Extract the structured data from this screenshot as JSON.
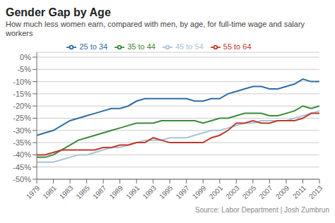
{
  "chart_data": {
    "type": "line",
    "title": "Gender Gap by Age",
    "subtitle": "How much less women earn, compared with men, by age, for full-time wage and salary workers",
    "annotations": [
      "Source: Labor Department  |  Josh Zumbrun"
    ],
    "x": [
      1979,
      1980,
      1981,
      1982,
      1983,
      1984,
      1985,
      1986,
      1987,
      1988,
      1989,
      1990,
      1991,
      1992,
      1993,
      1994,
      1995,
      1996,
      1997,
      1998,
      1999,
      2000,
      2001,
      2002,
      2003,
      2004,
      2005,
      2006,
      2007,
      2008,
      2009,
      2010,
      2011,
      2012,
      2013
    ],
    "series": [
      {
        "name": "25 to 34",
        "color": "#2e6da4",
        "values": [
          -32,
          -31,
          -30,
          -28,
          -26,
          -25,
          -24,
          -23,
          -22,
          -21,
          -21,
          -20,
          -18,
          -17,
          -17,
          -17,
          -17,
          -17,
          -17,
          -18,
          -18,
          -17,
          -17,
          -15,
          -14,
          -13,
          -12,
          -12,
          -13,
          -13,
          -12,
          -11,
          -9,
          -10,
          -10
        ]
      },
      {
        "name": "35 to 44",
        "color": "#3a8a3a",
        "values": [
          -41,
          -41,
          -40,
          -38,
          -36,
          -34,
          -33,
          -32,
          -31,
          -30,
          -29,
          -28,
          -27,
          -27,
          -27,
          -26,
          -26,
          -26,
          -26,
          -26,
          -27,
          -26,
          -25,
          -25,
          -24,
          -23,
          -23,
          -23,
          -24,
          -24,
          -23,
          -22,
          -20,
          -21,
          -20
        ]
      },
      {
        "name": "45 to 54",
        "color": "#a8c4d8",
        "values": [
          -43,
          -43,
          -43,
          -42,
          -41,
          -40,
          -40,
          -39,
          -38,
          -37,
          -37,
          -36,
          -35,
          -34,
          -34,
          -34,
          -33,
          -33,
          -33,
          -32,
          -31,
          -30,
          -30,
          -29,
          -28,
          -27,
          -27,
          -26,
          -26,
          -26,
          -26,
          -25,
          -24,
          -23,
          -22
        ]
      },
      {
        "name": "55 to 64",
        "color": "#c0392b",
        "values": [
          -40,
          -40,
          -39,
          -38,
          -38,
          -38,
          -38,
          -38,
          -37,
          -37,
          -36,
          -36,
          -35,
          -35,
          -33,
          -34,
          -35,
          -35,
          -35,
          -35,
          -35,
          -33,
          -32,
          -30,
          -27,
          -27,
          -26,
          -27,
          -27,
          -26,
          -26,
          -26,
          -25,
          -23,
          -23
        ]
      }
    ],
    "xlim": [
      1979,
      2013
    ],
    "xticks": [
      1979,
      1981,
      1983,
      1985,
      1987,
      1989,
      1991,
      1993,
      1995,
      1997,
      1999,
      2001,
      2003,
      2005,
      2007,
      2009,
      2011,
      2013
    ],
    "ylim": [
      -50,
      2
    ],
    "yticks": [
      {
        "value": 0,
        "label": "0%"
      },
      {
        "value": -5,
        "label": "-5%"
      },
      {
        "value": -10,
        "label": "-10%"
      },
      {
        "value": -15,
        "label": "-15%"
      },
      {
        "value": -20,
        "label": "-20%"
      },
      {
        "value": -25,
        "label": "-25%"
      },
      {
        "value": -30,
        "label": "-30%"
      },
      {
        "value": -35,
        "label": "-35%"
      },
      {
        "value": -40,
        "label": "-40%"
      },
      {
        "value": -45,
        "label": "-45%"
      },
      {
        "value": -50,
        "label": "-50%"
      }
    ],
    "grid": "y",
    "legend": "top"
  }
}
